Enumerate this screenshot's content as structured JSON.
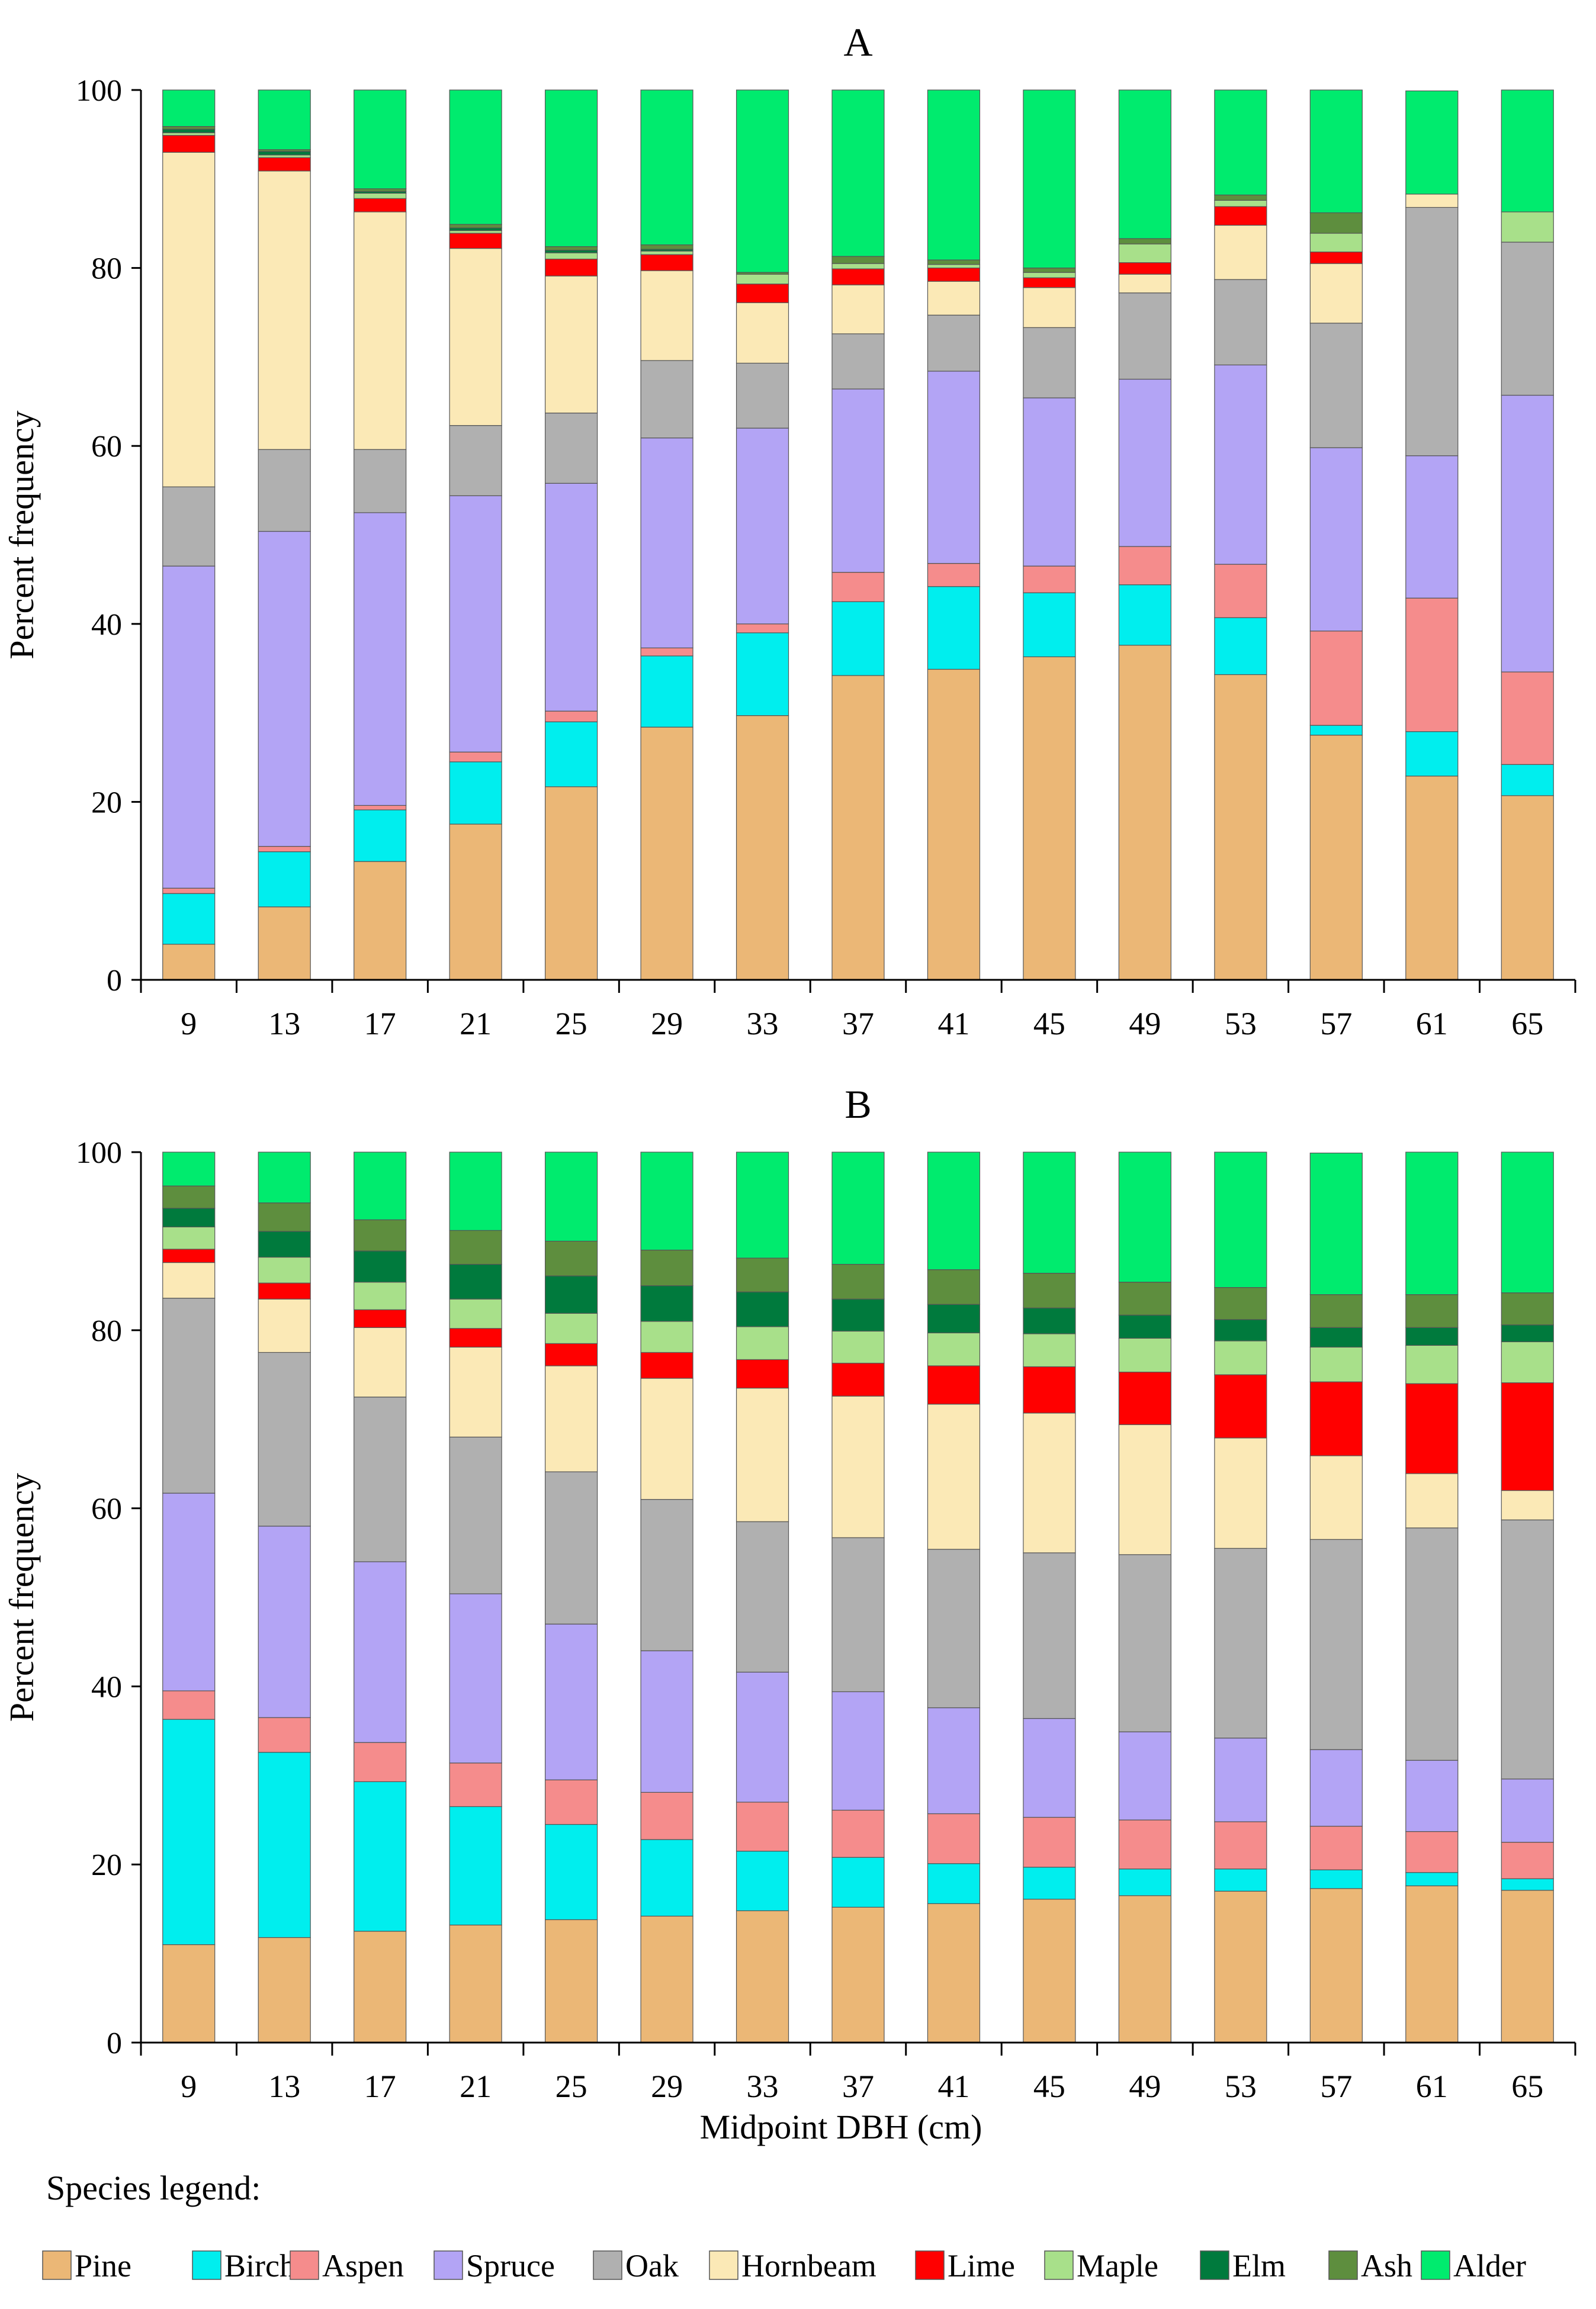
{
  "x_label": "Midpoint DBH (cm)",
  "legend_title": "Species legend:",
  "chart_data": [
    {
      "type": "bar",
      "stacked": true,
      "title": "A",
      "ylabel": "Percent frequency",
      "xlabel": "Midpoint DBH (cm)",
      "ylim": [
        0,
        100
      ],
      "yticks": [
        0,
        20,
        40,
        60,
        80,
        100
      ],
      "categories": [
        "9",
        "13",
        "17",
        "21",
        "25",
        "29",
        "33",
        "37",
        "41",
        "45",
        "49",
        "53",
        "57",
        "61",
        "65"
      ],
      "series": [
        {
          "name": "Pine",
          "color": "#EBB776",
          "values": [
            4,
            8.2,
            13.3,
            17.5,
            21.7,
            28.4,
            29.7,
            34.2,
            34.9,
            36.3,
            37.6,
            34.3,
            27.5,
            22.9,
            20.7
          ]
        },
        {
          "name": "Birch",
          "color": "#00EEEE",
          "values": [
            5.7,
            6.2,
            5.8,
            7,
            7.3,
            8,
            9.3,
            8.3,
            9.3,
            7.2,
            6.8,
            6.4,
            1.1,
            5,
            3.5
          ]
        },
        {
          "name": "Aspen",
          "color": "#F58C8C",
          "values": [
            0.6,
            0.6,
            0.5,
            1.1,
            1.2,
            0.9,
            1,
            3.3,
            2.6,
            3,
            4.3,
            6,
            10.6,
            15,
            10.4
          ]
        },
        {
          "name": "Spruce",
          "color": "#B3A4F5",
          "values": [
            36.2,
            35.4,
            32.9,
            28.8,
            25.6,
            23.6,
            22,
            20.6,
            21.6,
            18.9,
            18.8,
            22.4,
            20.6,
            16,
            31.1
          ]
        },
        {
          "name": "Oak",
          "color": "#B0B0B0",
          "values": [
            8.9,
            9.2,
            7.1,
            7.9,
            7.9,
            8.7,
            7.3,
            6.2,
            6.3,
            7.9,
            9.7,
            9.6,
            14,
            27.9,
            17.2
          ]
        },
        {
          "name": "Hornbeam",
          "color": "#FBE9B6",
          "values": [
            37.6,
            31.3,
            26.7,
            19.9,
            15.4,
            10.1,
            6.8,
            5.5,
            3.8,
            4.5,
            2.1,
            6.1,
            6.7,
            1.5,
            0
          ]
        },
        {
          "name": "Lime",
          "color": "#FF0000",
          "values": [
            1.9,
            1.5,
            1.5,
            1.7,
            1.9,
            1.8,
            2.1,
            1.8,
            1.5,
            1.1,
            1.3,
            2.1,
            1.3,
            0,
            0
          ]
        },
        {
          "name": "Maple",
          "color": "#A8E08A",
          "values": [
            0.3,
            0.3,
            0.6,
            0.3,
            0.7,
            0.4,
            1.1,
            0.6,
            0.4,
            0.6,
            2.1,
            0.7,
            2.1,
            0,
            3.4
          ]
        },
        {
          "name": "Elm",
          "color": "#007A3D",
          "values": [
            0.4,
            0.4,
            0.2,
            0.3,
            0.3,
            0.2,
            0,
            0,
            0,
            0,
            0,
            0,
            0,
            0,
            0
          ]
        },
        {
          "name": "Ash",
          "color": "#5E8E3E",
          "values": [
            0.3,
            0.2,
            0.3,
            0.4,
            0.4,
            0.5,
            0.2,
            0.8,
            0.5,
            0.5,
            0.6,
            0.6,
            2.3,
            0,
            0
          ]
        },
        {
          "name": "Alder",
          "color": "#00EB6E",
          "values": [
            4.1,
            6.7,
            11.1,
            15.1,
            17.6,
            17.4,
            20.5,
            19,
            19.1,
            20.2,
            16.7,
            11.8,
            13.8,
            11.6,
            13.7
          ]
        }
      ]
    },
    {
      "type": "bar",
      "stacked": true,
      "title": "B",
      "ylabel": "Percent frequency",
      "xlabel": "Midpoint DBH (cm)",
      "ylim": [
        0,
        100
      ],
      "yticks": [
        0,
        20,
        40,
        60,
        80,
        100
      ],
      "categories": [
        "9",
        "13",
        "17",
        "21",
        "25",
        "29",
        "33",
        "37",
        "41",
        "45",
        "49",
        "53",
        "57",
        "61",
        "65"
      ],
      "series": [
        {
          "name": "Pine",
          "color": "#EBB776",
          "values": [
            11,
            11.8,
            12.5,
            13.2,
            13.8,
            14.2,
            14.8,
            15.2,
            15.6,
            16.1,
            16.5,
            17,
            17.3,
            17.6,
            17.1
          ]
        },
        {
          "name": "Birch",
          "color": "#00EEEE",
          "values": [
            25.3,
            20.8,
            16.8,
            13.3,
            10.7,
            8.6,
            6.7,
            5.6,
            4.5,
            3.6,
            3,
            2.5,
            2.1,
            1.5,
            1.3
          ]
        },
        {
          "name": "Aspen",
          "color": "#F58C8C",
          "values": [
            3.2,
            3.9,
            4.4,
            4.9,
            5,
            5.3,
            5.5,
            5.3,
            5.6,
            5.6,
            5.5,
            5.3,
            4.9,
            4.6,
            4.1
          ]
        },
        {
          "name": "Spruce",
          "color": "#B3A4F5",
          "values": [
            22.2,
            21.5,
            20.3,
            19,
            17.5,
            15.9,
            14.6,
            13.3,
            11.9,
            11.1,
            9.9,
            9.4,
            8.6,
            8,
            7.1
          ]
        },
        {
          "name": "Oak",
          "color": "#B0B0B0",
          "values": [
            21.9,
            19.5,
            18.5,
            17.6,
            17.1,
            17,
            16.9,
            17.3,
            17.8,
            18.6,
            19.9,
            21.3,
            23.6,
            26.1,
            29.1
          ]
        },
        {
          "name": "Hornbeam",
          "color": "#FBE9B6",
          "values": [
            4,
            6,
            7.8,
            10.1,
            11.9,
            13.6,
            15,
            15.9,
            16.3,
            15.7,
            14.6,
            12.4,
            9.4,
            6.1,
            3.3
          ]
        },
        {
          "name": "Lime",
          "color": "#FF0000",
          "values": [
            1.5,
            1.8,
            2,
            2.1,
            2.5,
            2.9,
            3.2,
            3.7,
            4.3,
            5.2,
            5.9,
            7.1,
            8.3,
            10.1,
            12.1
          ]
        },
        {
          "name": "Maple",
          "color": "#A8E08A",
          "values": [
            2.5,
            2.9,
            3.1,
            3.3,
            3.4,
            3.5,
            3.7,
            3.6,
            3.7,
            3.7,
            3.8,
            3.8,
            3.9,
            4.3,
            4.6
          ]
        },
        {
          "name": "Elm",
          "color": "#007A3D",
          "values": [
            2.1,
            2.9,
            3.5,
            3.9,
            4.2,
            4,
            3.9,
            3.6,
            3.2,
            2.9,
            2.6,
            2.4,
            2.2,
            2,
            1.9
          ]
        },
        {
          "name": "Ash",
          "color": "#5E8E3E",
          "values": [
            2.5,
            3.2,
            3.5,
            3.8,
            3.9,
            4,
            3.8,
            3.9,
            3.9,
            3.9,
            3.7,
            3.6,
            3.7,
            3.7,
            3.6
          ]
        },
        {
          "name": "Alder",
          "color": "#00EB6E",
          "values": [
            3.8,
            5.7,
            7.6,
            8.8,
            10,
            11,
            11.9,
            12.6,
            13.2,
            13.8,
            14.6,
            15.2,
            15.9,
            16,
            15.8
          ]
        }
      ]
    }
  ]
}
